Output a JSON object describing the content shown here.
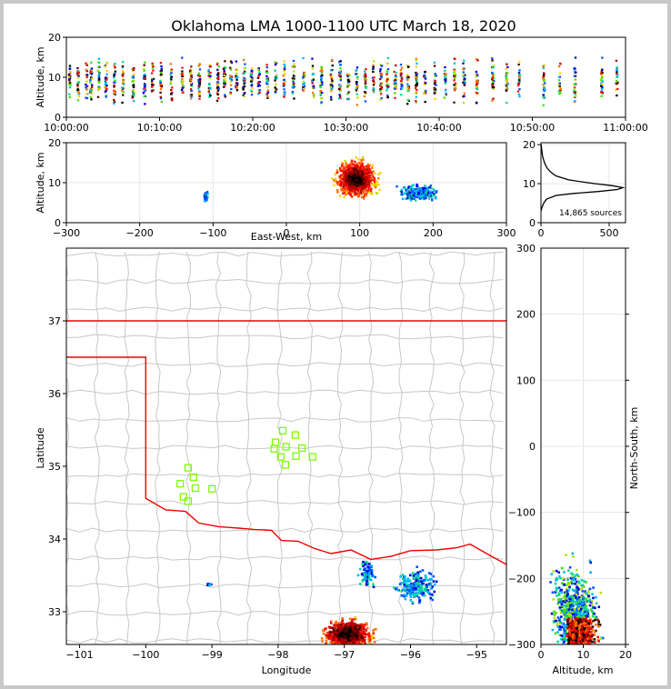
{
  "chart_data": {
    "title": "Oklahoma LMA 1000-1100 UTC March 18, 2020",
    "panels": [
      {
        "id": "time-altitude",
        "type": "scatter",
        "ylabel": "Altitude, km",
        "ylim": [
          0,
          20
        ],
        "yticks": [
          "0",
          "10",
          "20"
        ],
        "xticks": [
          "10:00:00",
          "10:10:00",
          "10:20:00",
          "10:30:00",
          "10:40:00",
          "10:50:00",
          "11:00:00"
        ],
        "xlim_minutes": [
          0,
          60
        ],
        "flash_minutes": [
          0.3,
          1.2,
          2.1,
          2.6,
          3.4,
          4.2,
          5.1,
          6.0,
          7.1,
          8.3,
          9.2,
          10.1,
          11.2,
          12.4,
          13.3,
          14.2,
          15.3,
          16.2,
          16.9,
          17.6,
          18.2,
          19.0,
          19.8,
          20.6,
          21.5,
          22.4,
          23.3,
          24.3,
          25.4,
          26.4,
          27.3,
          28.4,
          29.3,
          30.2,
          31.1,
          32.0,
          32.9,
          33.7,
          34.4,
          35.2,
          35.9,
          36.6,
          37.5,
          38.4,
          39.5,
          40.6,
          41.6,
          42.6,
          44.0,
          45.7,
          47.2,
          48.5,
          51.2,
          52.9,
          54.5,
          57.4,
          59.0
        ]
      },
      {
        "id": "ew-altitude",
        "type": "scatter",
        "xlabel": "East-West, km",
        "ylabel": "Altitude, km",
        "xlim": [
          -300,
          300
        ],
        "ylim": [
          0,
          20
        ],
        "xticks": [
          "−300",
          "−200",
          "−100",
          "0",
          "100",
          "200",
          "300"
        ],
        "yticks": [
          "0",
          "10",
          "20"
        ]
      },
      {
        "id": "altitude-histogram",
        "type": "line",
        "xlim": [
          0,
          620
        ],
        "ylim": [
          0,
          20.5
        ],
        "xticks": [
          "0",
          "500"
        ],
        "yticks": [
          "0",
          "10",
          "20"
        ],
        "annotation": "14,865 sources",
        "profile_alt": [
          3,
          4,
          5,
          6,
          7,
          7.5,
          8,
          8.5,
          9,
          9.5,
          10,
          10.5,
          11,
          12,
          13,
          14,
          15,
          16,
          17,
          18,
          19,
          20
        ],
        "profile_count": [
          0,
          8,
          20,
          40,
          110,
          240,
          420,
          560,
          600,
          520,
          400,
          290,
          200,
          110,
          70,
          45,
          30,
          20,
          12,
          8,
          4,
          2
        ]
      },
      {
        "id": "plan-view",
        "type": "scatter",
        "xlabel": "Longitude",
        "ylabel": "Latitude",
        "xlim": [
          -101.2,
          -94.55
        ],
        "ylim": [
          32.55,
          38
        ],
        "xticks": [
          "−101",
          "−100",
          "−99",
          "−98",
          "−97",
          "−96",
          "−95"
        ],
        "yticks": [
          "33",
          "34",
          "35",
          "36",
          "37"
        ],
        "stations": [
          [
            -97.93,
            35.49
          ],
          [
            -97.74,
            35.43
          ],
          [
            -98.04,
            35.33
          ],
          [
            -97.88,
            35.27
          ],
          [
            -97.64,
            35.25
          ],
          [
            -98.06,
            35.24
          ],
          [
            -97.73,
            35.14
          ],
          [
            -97.48,
            35.13
          ],
          [
            -97.96,
            35.13
          ],
          [
            -97.89,
            35.02
          ],
          [
            -99.36,
            34.98
          ],
          [
            -99.28,
            34.85
          ],
          [
            -99.48,
            34.76
          ],
          [
            -99.25,
            34.7
          ],
          [
            -99.0,
            34.69
          ],
          [
            -99.43,
            34.58
          ],
          [
            -99.36,
            34.52
          ]
        ]
      },
      {
        "id": "altitude-ns",
        "type": "scatter",
        "xlabel": "Altitude, km",
        "ylabel": "North-South, km",
        "xlim": [
          0,
          20
        ],
        "ylim": [
          -300,
          300
        ],
        "xticks": [
          "0",
          "10",
          "20"
        ],
        "yticks": [
          "−300",
          "−200",
          "−100",
          "0",
          "100",
          "200",
          "300"
        ]
      }
    ],
    "colormap": [
      "#0000d8",
      "#0050ff",
      "#00b4ff",
      "#00d890",
      "#40e000",
      "#b8e000",
      "#ffd000",
      "#ff7000",
      "#ff1000",
      "#b80000",
      "#500000",
      "#000000"
    ],
    "border_color": "#ee0000",
    "county_color": "#c8c8c8",
    "station_color": "#7cfc00"
  }
}
